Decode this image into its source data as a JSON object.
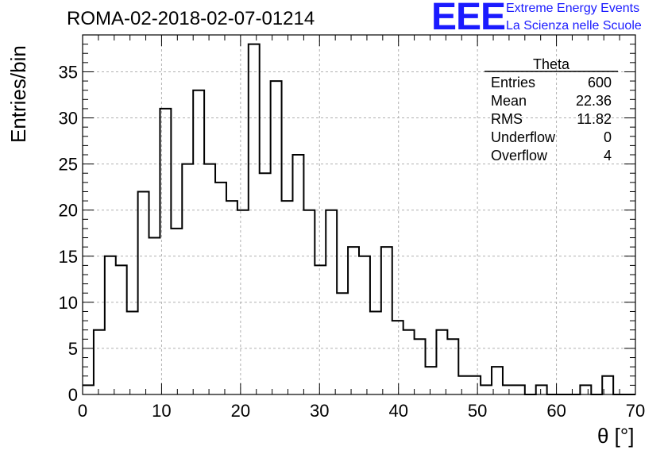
{
  "header": {
    "title": "ROMA-02-2018-02-07-01214",
    "logo_text": "EEE",
    "logo_line1": "Extreme Energy Events",
    "logo_line2": "La Scienza nelle Scuole"
  },
  "stats_box": {
    "name": "Theta",
    "rows": [
      {
        "label": "Entries",
        "value": "600"
      },
      {
        "label": "Mean",
        "value": "22.36"
      },
      {
        "label": "RMS",
        "value": "11.82"
      },
      {
        "label": "Underflow",
        "value": "0"
      },
      {
        "label": "Overflow",
        "value": "4"
      }
    ]
  },
  "colors": {
    "logo": "#1a1aff",
    "line": "#000000",
    "grid": "#b0b0b0"
  },
  "chart_data": {
    "type": "bar",
    "style": "step-histogram",
    "xlabel": "θ [°]",
    "ylabel": "Entries/bin",
    "xlim": [
      0,
      70
    ],
    "ylim": [
      0,
      39
    ],
    "bin_width": 1.4,
    "values": [
      1,
      7,
      15,
      14,
      9,
      22,
      17,
      31,
      18,
      25,
      33,
      25,
      23,
      21,
      20,
      38,
      24,
      34,
      21,
      26,
      20,
      14,
      20,
      11,
      16,
      15,
      9,
      16,
      8,
      7,
      6,
      3,
      7,
      6,
      2,
      2,
      1,
      3,
      1,
      1,
      0,
      1,
      0,
      0,
      0,
      1,
      0,
      2,
      0,
      0
    ],
    "xticks": [
      0,
      10,
      20,
      30,
      40,
      50,
      60,
      70
    ],
    "yticks": [
      0,
      5,
      10,
      15,
      20,
      25,
      30,
      35
    ],
    "grid": true
  }
}
